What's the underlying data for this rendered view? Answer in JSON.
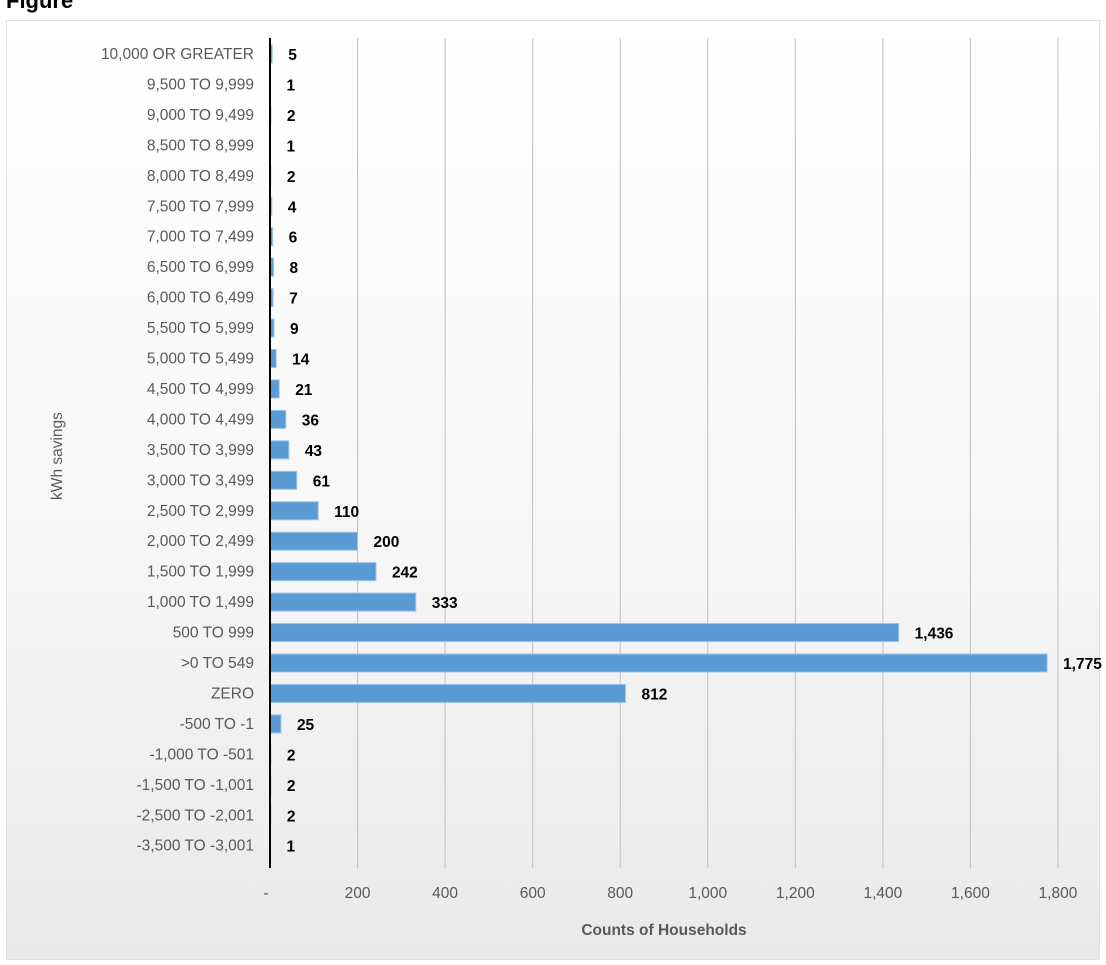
{
  "page": {
    "top_caption": "Figure"
  },
  "chart_data": {
    "type": "bar",
    "orientation": "horizontal",
    "title": "",
    "xlabel": "Counts of Households",
    "ylabel": "kWh savings",
    "xlim": [
      0,
      1800
    ],
    "xticks": [
      "-",
      "200",
      "400",
      "600",
      "800",
      "1,000",
      "1,200",
      "1,400",
      "1,600",
      "1,800"
    ],
    "categories": [
      "10,000 OR GREATER",
      "9,500 TO 9,999",
      "9,000 TO 9,499",
      "8,500 TO 8,999",
      "8,000 TO 8,499",
      "7,500 TO 7,999",
      "7,000 TO 7,499",
      "6,500 TO 6,999",
      "6,000 TO 6,499",
      "5,500 TO 5,999",
      "5,000 TO 5,499",
      "4,500 TO 4,999",
      "4,000 TO 4,499",
      "3,500 TO 3,999",
      "3,000 TO 3,499",
      "2,500 TO 2,999",
      "2,000 TO 2,499",
      "1,500 TO 1,999",
      "1,000 TO 1,499",
      "500 TO 999",
      ">0 TO 549",
      "ZERO",
      "-500 TO -1",
      "-1,000 TO -501",
      "-1,500 TO -1,001",
      "-2,500 TO -2,001",
      "-3,500 TO -3,001"
    ],
    "values": [
      5,
      1,
      2,
      1,
      2,
      4,
      6,
      8,
      7,
      9,
      14,
      21,
      36,
      43,
      61,
      110,
      200,
      242,
      333,
      1436,
      1775,
      812,
      25,
      2,
      2,
      2,
      1
    ],
    "value_labels": [
      "5",
      "1",
      "2",
      "1",
      "2",
      "4",
      "6",
      "8",
      "7",
      "9",
      "14",
      "21",
      "36",
      "43",
      "61",
      "110",
      "200",
      "242",
      "333",
      "1,436",
      "1,775",
      "812",
      "25",
      "2",
      "2",
      "2",
      "1"
    ],
    "grid": true,
    "legend": "none",
    "colors": {
      "bar_fill": "#5b9bd5",
      "bar_edge": "#9dc3e6",
      "grid": "#bfbfbf",
      "axis": "#000000",
      "label_text": "#595959",
      "value_text": "#000000"
    }
  }
}
